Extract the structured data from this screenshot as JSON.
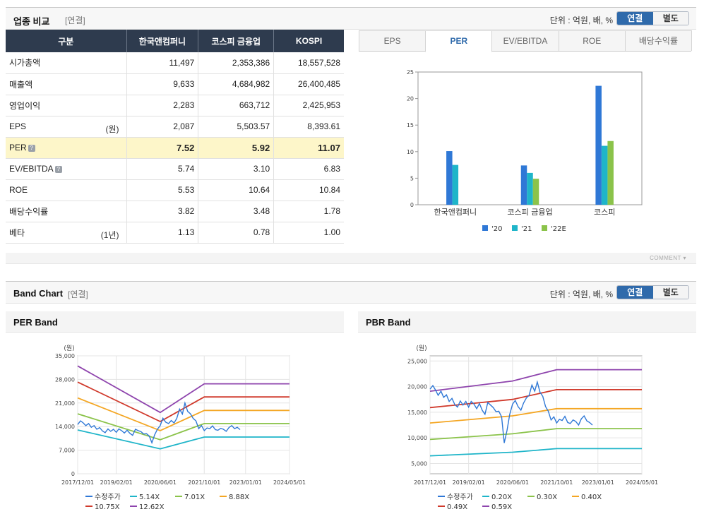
{
  "compare": {
    "title": "업종 비교",
    "basis": "[연결]",
    "unit": "단위 : 억원, 배, %",
    "toggle": {
      "on": "연결",
      "off": "별도"
    },
    "columns": [
      "구분",
      "한국앤컴퍼니",
      "코스피 금융업",
      "KOSPI"
    ],
    "rows": [
      {
        "label": "시가총액",
        "note": "",
        "values": [
          "11,497",
          "2,353,386",
          "18,557,528"
        ]
      },
      {
        "label": "매출액",
        "note": "",
        "values": [
          "9,633",
          "4,684,982",
          "26,400,485"
        ]
      },
      {
        "label": "영업이익",
        "note": "",
        "values": [
          "2,283",
          "663,712",
          "2,425,953"
        ]
      },
      {
        "label": "EPS",
        "note": "(원)",
        "values": [
          "2,087",
          "5,503.57",
          "8,393.61"
        ]
      },
      {
        "label": "PER",
        "note": "",
        "values": [
          "7.52",
          "5.92",
          "11.07"
        ]
      },
      {
        "label": "EV/EBITDA",
        "note": "",
        "values": [
          "5.74",
          "3.10",
          "6.83"
        ]
      },
      {
        "label": "ROE",
        "note": "",
        "values": [
          "5.53",
          "10.64",
          "10.84"
        ]
      },
      {
        "label": "배당수익률",
        "note": "",
        "values": [
          "3.82",
          "3.48",
          "1.78"
        ]
      },
      {
        "label": "베타",
        "note": "(1년)",
        "values": [
          "1.13",
          "0.78",
          "1.00"
        ]
      }
    ],
    "tabs": [
      "EPS",
      "PER",
      "EV/EBITDA",
      "ROE",
      "배당수익률"
    ],
    "active_tab": "PER",
    "comment_label": "COMMENT"
  },
  "band": {
    "title": "Band Chart",
    "basis": "[연결]",
    "unit": "단위 : 억원, 배, %",
    "toggle": {
      "on": "연결",
      "off": "별도"
    }
  },
  "colors": {
    "bar20": "#2f78d6",
    "bar21": "#1fb5c9",
    "bar22": "#8bc34a",
    "price": "#2f78d6",
    "b1": "#1fb5c9",
    "b2": "#8bc34a",
    "b3": "#f4a623",
    "b4": "#d0392b",
    "b5": "#8e44ad"
  },
  "chart_data": [
    {
      "type": "bar",
      "categories": [
        "한국앤컴퍼니",
        "코스피 금융업",
        "코스피"
      ],
      "series": [
        {
          "name": "'20",
          "values": [
            10.1,
            7.4,
            22.4
          ]
        },
        {
          "name": "'21",
          "values": [
            7.5,
            6.0,
            11.1
          ]
        },
        {
          "name": "'22E",
          "values": [
            null,
            4.9,
            12.0
          ]
        }
      ],
      "yticks": [
        "0",
        "5",
        "10",
        "15",
        "20",
        "25"
      ],
      "ylim": [
        0,
        25
      ]
    },
    {
      "type": "line",
      "title": "PER Band",
      "ylabel": "(원)",
      "ylim": [
        0,
        35000
      ],
      "yticks": [
        "0",
        "7,000",
        "14,000",
        "21,000",
        "28,000",
        "35,000"
      ],
      "xticks": [
        "2017/12/01",
        "2019/02/01",
        "2020/06/01",
        "2021/10/01",
        "2023/01/01",
        "2024/05/01"
      ],
      "xlim": [
        "2017/12/01",
        "2024/05/01"
      ],
      "series": [
        {
          "name": "수정주가",
          "points": [
            [
              "2017/12/01",
              14600
            ],
            [
              "2018/01/01",
              15700
            ],
            [
              "2018/02/01",
              15100
            ],
            [
              "2018/03/01",
              14300
            ],
            [
              "2018/04/01",
              14900
            ],
            [
              "2018/05/01",
              13800
            ],
            [
              "2018/06/01",
              14300
            ],
            [
              "2018/07/01",
              13200
            ],
            [
              "2018/08/01",
              13700
            ],
            [
              "2018/09/01",
              12700
            ],
            [
              "2018/10/01",
              12200
            ],
            [
              "2018/11/01",
              13300
            ],
            [
              "2018/12/01",
              12600
            ],
            [
              "2019/01/01",
              13200
            ],
            [
              "2019/02/01",
              12300
            ],
            [
              "2019/03/01",
              13300
            ],
            [
              "2019/04/01",
              12800
            ],
            [
              "2019/05/01",
              12100
            ],
            [
              "2019/06/01",
              12900
            ],
            [
              "2019/07/01",
              12000
            ],
            [
              "2019/08/01",
              11400
            ],
            [
              "2019/09/01",
              13200
            ],
            [
              "2019/10/01",
              12800
            ],
            [
              "2019/11/01",
              12500
            ],
            [
              "2019/12/01",
              11800
            ],
            [
              "2020/01/01",
              11900
            ],
            [
              "2020/02/01",
              11200
            ],
            [
              "2020/03/01",
              9200
            ],
            [
              "2020/04/01",
              11600
            ],
            [
              "2020/05/01",
              13200
            ],
            [
              "2020/06/01",
              14300
            ],
            [
              "2020/07/01",
              16500
            ],
            [
              "2020/08/01",
              15300
            ],
            [
              "2020/09/01",
              14900
            ],
            [
              "2020/10/01",
              15800
            ],
            [
              "2020/11/01",
              15100
            ],
            [
              "2020/12/01",
              16400
            ],
            [
              "2021/01/01",
              19200
            ],
            [
              "2021/02/01",
              17700
            ],
            [
              "2021/03/01",
              21000
            ],
            [
              "2021/04/01",
              18500
            ],
            [
              "2021/05/01",
              17800
            ],
            [
              "2021/06/01",
              16400
            ],
            [
              "2021/07/01",
              15700
            ],
            [
              "2021/08/01",
              13400
            ],
            [
              "2021/09/01",
              14300
            ],
            [
              "2021/10/01",
              12800
            ],
            [
              "2021/11/01",
              13600
            ],
            [
              "2021/12/01",
              13400
            ],
            [
              "2022/01/01",
              14200
            ],
            [
              "2022/02/01",
              13100
            ],
            [
              "2022/03/01",
              12900
            ],
            [
              "2022/04/01",
              13500
            ],
            [
              "2022/05/01",
              13200
            ],
            [
              "2022/06/01",
              12600
            ],
            [
              "2022/07/01",
              13700
            ],
            [
              "2022/08/01",
              14300
            ],
            [
              "2022/09/01",
              13400
            ],
            [
              "2022/10/01",
              13800
            ],
            [
              "2022/11/01",
              13100
            ]
          ]
        },
        {
          "name": "5.14X",
          "points": [
            [
              "2017/12/01",
              13000
            ],
            [
              "2020/06/01",
              7400
            ],
            [
              "2021/10/01",
              10900
            ],
            [
              "2024/05/01",
              10900
            ]
          ]
        },
        {
          "name": "7.01X",
          "points": [
            [
              "2017/12/01",
              17800
            ],
            [
              "2020/06/01",
              10100
            ],
            [
              "2021/10/01",
              14900
            ],
            [
              "2024/05/01",
              14900
            ]
          ]
        },
        {
          "name": "8.88X",
          "points": [
            [
              "2017/12/01",
              22500
            ],
            [
              "2020/06/01",
              12800
            ],
            [
              "2021/10/01",
              18800
            ],
            [
              "2024/05/01",
              18800
            ]
          ]
        },
        {
          "name": "10.75X",
          "points": [
            [
              "2017/12/01",
              27200
            ],
            [
              "2020/06/01",
              15500
            ],
            [
              "2021/10/01",
              22800
            ],
            [
              "2024/05/01",
              22800
            ]
          ]
        },
        {
          "name": "12.62X",
          "points": [
            [
              "2017/12/01",
              32000
            ],
            [
              "2020/06/01",
              18200
            ],
            [
              "2021/10/01",
              26700
            ],
            [
              "2024/05/01",
              26700
            ]
          ]
        }
      ]
    },
    {
      "type": "line",
      "title": "PBR Band",
      "ylabel": "(원)",
      "ylim": [
        3000,
        26000
      ],
      "yticks": [
        "5,000",
        "10,000",
        "15,000",
        "20,000",
        "25,000"
      ],
      "xticks": [
        "2017/12/01",
        "2019/02/01",
        "2020/06/01",
        "2021/10/01",
        "2023/01/01",
        "2024/05/01"
      ],
      "xlim": [
        "2017/12/01",
        "2024/05/01"
      ],
      "series": [
        {
          "name": "수정주가",
          "points": [
            [
              "2017/12/01",
              19500
            ],
            [
              "2018/01/01",
              20200
            ],
            [
              "2018/02/01",
              19300
            ],
            [
              "2018/03/01",
              18300
            ],
            [
              "2018/04/01",
              19100
            ],
            [
              "2018/05/01",
              17900
            ],
            [
              "2018/06/01",
              18400
            ],
            [
              "2018/07/01",
              17100
            ],
            [
              "2018/08/01",
              17700
            ],
            [
              "2018/09/01",
              16500
            ],
            [
              "2018/10/01",
              16000
            ],
            [
              "2018/11/01",
              17200
            ],
            [
              "2018/12/01",
              16400
            ],
            [
              "2019/01/01",
              17100
            ],
            [
              "2019/02/01",
              16000
            ],
            [
              "2019/03/01",
              17100
            ],
            [
              "2019/04/01",
              16600
            ],
            [
              "2019/05/01",
              15700
            ],
            [
              "2019/06/01",
              16700
            ],
            [
              "2019/07/01",
              15400
            ],
            [
              "2019/08/01",
              14600
            ],
            [
              "2019/09/01",
              16900
            ],
            [
              "2019/10/01",
              16400
            ],
            [
              "2019/11/01",
              15900
            ],
            [
              "2019/12/01",
              15100
            ],
            [
              "2020/01/01",
              15200
            ],
            [
              "2020/02/01",
              14100
            ],
            [
              "2020/03/01",
              9000
            ],
            [
              "2020/04/01",
              11500
            ],
            [
              "2020/05/01",
              14600
            ],
            [
              "2020/06/01",
              16600
            ],
            [
              "2020/07/01",
              17300
            ],
            [
              "2020/08/01",
              16100
            ],
            [
              "2020/09/01",
              15400
            ],
            [
              "2020/10/01",
              16800
            ],
            [
              "2020/11/01",
              17800
            ],
            [
              "2020/12/01",
              18300
            ],
            [
              "2021/01/01",
              20300
            ],
            [
              "2021/02/01",
              19100
            ],
            [
              "2021/03/01",
              20900
            ],
            [
              "2021/04/01",
              18900
            ],
            [
              "2021/05/01",
              18100
            ],
            [
              "2021/06/01",
              16100
            ],
            [
              "2021/07/01",
              15200
            ],
            [
              "2021/08/01",
              13500
            ],
            [
              "2021/09/01",
              14100
            ],
            [
              "2021/10/01",
              12900
            ],
            [
              "2021/11/01",
              13600
            ],
            [
              "2021/12/01",
              13400
            ],
            [
              "2022/01/01",
              14200
            ],
            [
              "2022/02/01",
              13000
            ],
            [
              "2022/03/01",
              12800
            ],
            [
              "2022/04/01",
              13500
            ],
            [
              "2022/05/01",
              13200
            ],
            [
              "2022/06/01",
              12500
            ],
            [
              "2022/07/01",
              13700
            ],
            [
              "2022/08/01",
              14300
            ],
            [
              "2022/09/01",
              13300
            ],
            [
              "2022/10/01",
              13000
            ],
            [
              "2022/11/01",
              12500
            ]
          ]
        },
        {
          "name": "0.20X",
          "points": [
            [
              "2017/12/01",
              6500
            ],
            [
              "2020/06/01",
              7200
            ],
            [
              "2021/10/01",
              7900
            ],
            [
              "2024/05/01",
              7900
            ]
          ]
        },
        {
          "name": "0.30X",
          "points": [
            [
              "2017/12/01",
              9700
            ],
            [
              "2020/06/01",
              10800
            ],
            [
              "2021/10/01",
              11800
            ],
            [
              "2024/05/01",
              11800
            ]
          ]
        },
        {
          "name": "0.40X",
          "points": [
            [
              "2017/12/01",
              12900
            ],
            [
              "2020/06/01",
              14300
            ],
            [
              "2021/10/01",
              15700
            ],
            [
              "2024/05/01",
              15700
            ]
          ]
        },
        {
          "name": "0.49X",
          "points": [
            [
              "2017/12/01",
              15900
            ],
            [
              "2020/06/01",
              17500
            ],
            [
              "2021/10/01",
              19400
            ],
            [
              "2024/05/01",
              19400
            ]
          ]
        },
        {
          "name": "0.59X",
          "points": [
            [
              "2017/12/01",
              19100
            ],
            [
              "2020/06/01",
              21100
            ],
            [
              "2021/10/01",
              23300
            ],
            [
              "2024/05/01",
              23300
            ]
          ]
        }
      ]
    }
  ]
}
